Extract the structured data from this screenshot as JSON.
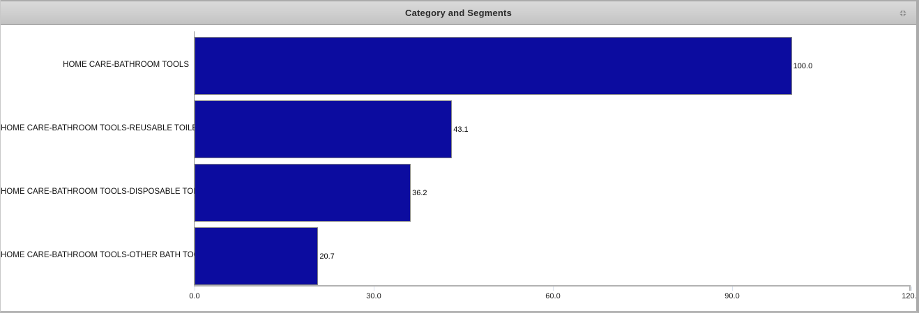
{
  "header": {
    "title": "Category and Segments",
    "collapse_icon": "collapse-arrows-icon"
  },
  "colors": {
    "bar": "#0c0c9f",
    "bar_border": "#858585",
    "axis": "#b2b2b2",
    "header_text": "#2b2b2b",
    "icon": "#8c8c8c"
  },
  "chart_data": {
    "type": "bar",
    "orientation": "horizontal",
    "title": "Category and Segments",
    "categories": [
      "HOME CARE-BATHROOM TOOLS",
      "HOME CARE-BATHROOM TOOLS-REUSABLE TOILET...",
      "HOME CARE-BATHROOM TOOLS-DISPOSABLE TOIL...",
      "HOME CARE-BATHROOM TOOLS-OTHER BATH TOO..."
    ],
    "values": [
      100.0,
      43.1,
      36.2,
      20.7
    ],
    "value_labels": [
      "100.0",
      "43.1",
      "36.2",
      "20.7"
    ],
    "xlabel": "",
    "ylabel": "",
    "xlim": [
      0,
      120
    ],
    "x_ticks": [
      "0.0",
      "30.0",
      "60.0",
      "90.0",
      "120.0"
    ],
    "x_tick_values": [
      0,
      30,
      60,
      90,
      120
    ],
    "grid": false,
    "legend": "none",
    "bar_color": "#0c0c9f"
  }
}
